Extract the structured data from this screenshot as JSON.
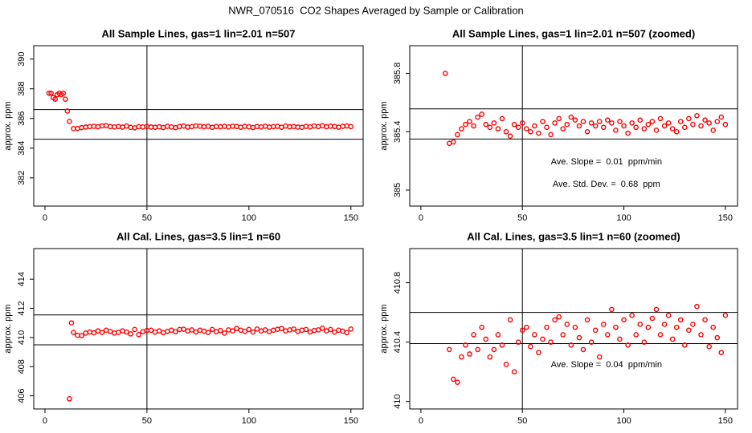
{
  "title": "NWR_070516  CO2 Shapes Averaged by Sample or Calibration",
  "chart_data": [
    {
      "type": "scatter",
      "title": "All Sample Lines, gas=1 lin=2.01 n=507",
      "y_label": "approx. ppm",
      "color": "#ff0000",
      "xlim": [
        -5.5,
        156
      ],
      "xticks": [
        0,
        50,
        100,
        150
      ],
      "ylim": [
        380.1,
        390.9
      ],
      "yticks": [
        382,
        384,
        386,
        388,
        390
      ],
      "hlines": [
        386.6,
        384.6
      ],
      "vlines": [
        50
      ],
      "annotations": [],
      "x": [
        2,
        3,
        4,
        5,
        6,
        7,
        8,
        9,
        10,
        11,
        12,
        14,
        16,
        18,
        20,
        22,
        24,
        26,
        28,
        30,
        32,
        34,
        36,
        38,
        40,
        42,
        44,
        46,
        48,
        50,
        52,
        54,
        56,
        58,
        60,
        62,
        64,
        66,
        68,
        70,
        72,
        74,
        76,
        78,
        80,
        82,
        84,
        86,
        88,
        90,
        92,
        94,
        96,
        98,
        100,
        102,
        104,
        106,
        108,
        110,
        112,
        114,
        116,
        118,
        120,
        122,
        124,
        126,
        128,
        130,
        132,
        134,
        136,
        138,
        140,
        142,
        144,
        146,
        148,
        150
      ],
      "values": [
        387.7,
        387.7,
        387.4,
        387.3,
        387.6,
        387.7,
        387.6,
        387.7,
        387.3,
        386.5,
        385.8,
        385.32,
        385.33,
        385.38,
        385.42,
        385.45,
        385.47,
        385.44,
        385.5,
        385.52,
        385.45,
        385.43,
        385.46,
        385.42,
        385.49,
        385.4,
        385.37,
        385.45,
        385.43,
        385.46,
        385.42,
        385.4,
        385.44,
        385.39,
        385.47,
        385.43,
        385.38,
        385.46,
        385.49,
        385.42,
        385.45,
        385.5,
        385.48,
        385.44,
        385.47,
        385.4,
        385.46,
        385.44,
        385.47,
        385.43,
        385.48,
        385.46,
        385.41,
        385.47,
        385.44,
        385.39,
        385.46,
        385.43,
        385.48,
        385.42,
        385.45,
        385.47,
        385.41,
        385.49,
        385.44,
        385.46,
        385.42,
        385.4,
        385.47,
        385.43,
        385.49,
        385.45,
        385.51,
        385.44,
        385.48,
        385.46,
        385.41,
        385.47,
        385.5,
        385.45
      ]
    },
    {
      "type": "scatter",
      "title": "All Sample Lines, gas=1 lin=2.01 n=507 (zoomed)",
      "y_label": "approx. ppm",
      "color": "#ff0000",
      "xlim": [
        -5.5,
        156
      ],
      "xticks": [
        0,
        50,
        100,
        150
      ],
      "ylim": [
        384.89,
        385.99
      ],
      "yticks": [
        385.0,
        385.4,
        385.8
      ],
      "hlines": [
        385.557,
        385.35
      ],
      "vlines": [
        50
      ],
      "annotations": [
        "Ave. Slope =  0.01  ppm/min",
        "Ave. Std. Dev. =  0.68  ppm"
      ],
      "x": [
        12,
        14,
        16,
        18,
        20,
        22,
        24,
        26,
        28,
        30,
        32,
        34,
        36,
        38,
        40,
        42,
        44,
        46,
        48,
        50,
        52,
        54,
        56,
        58,
        60,
        62,
        64,
        66,
        68,
        70,
        72,
        74,
        76,
        78,
        80,
        82,
        84,
        86,
        88,
        90,
        92,
        94,
        96,
        98,
        100,
        102,
        104,
        106,
        108,
        110,
        112,
        114,
        116,
        118,
        120,
        122,
        124,
        126,
        128,
        130,
        132,
        134,
        136,
        138,
        140,
        142,
        144,
        146,
        148,
        150
      ],
      "values": [
        385.8,
        385.32,
        385.33,
        385.38,
        385.42,
        385.45,
        385.47,
        385.44,
        385.5,
        385.52,
        385.45,
        385.43,
        385.46,
        385.42,
        385.49,
        385.4,
        385.37,
        385.45,
        385.43,
        385.46,
        385.42,
        385.4,
        385.44,
        385.39,
        385.47,
        385.43,
        385.38,
        385.46,
        385.49,
        385.42,
        385.45,
        385.5,
        385.48,
        385.44,
        385.47,
        385.4,
        385.46,
        385.44,
        385.47,
        385.43,
        385.48,
        385.46,
        385.41,
        385.47,
        385.44,
        385.39,
        385.46,
        385.43,
        385.48,
        385.42,
        385.45,
        385.47,
        385.41,
        385.49,
        385.44,
        385.46,
        385.42,
        385.4,
        385.47,
        385.43,
        385.49,
        385.45,
        385.51,
        385.44,
        385.48,
        385.46,
        385.41,
        385.47,
        385.5,
        385.45
      ]
    },
    {
      "type": "scatter",
      "title": "All Cal. Lines, gas=3.5 lin=1 n=60",
      "y_label": "approx. ppm",
      "color": "#ff0000",
      "xlim": [
        -5.5,
        156
      ],
      "xticks": [
        0,
        50,
        100,
        150
      ],
      "ylim": [
        405.1,
        416.1
      ],
      "yticks": [
        406,
        408,
        410,
        412,
        414
      ],
      "hlines": [
        411.55,
        409.5
      ],
      "vlines": [
        50
      ],
      "annotations": [],
      "x": [
        12,
        13,
        14,
        16,
        18,
        20,
        22,
        24,
        26,
        28,
        30,
        32,
        34,
        36,
        38,
        40,
        42,
        44,
        46,
        48,
        50,
        52,
        54,
        56,
        58,
        60,
        62,
        64,
        66,
        68,
        70,
        72,
        74,
        76,
        78,
        80,
        82,
        84,
        86,
        88,
        90,
        92,
        94,
        96,
        98,
        100,
        102,
        104,
        106,
        108,
        110,
        112,
        114,
        116,
        118,
        120,
        122,
        124,
        126,
        128,
        130,
        132,
        134,
        136,
        138,
        140,
        142,
        144,
        146,
        148,
        150
      ],
      "values": [
        405.8,
        411.0,
        410.35,
        410.15,
        410.13,
        410.3,
        410.38,
        410.32,
        410.45,
        410.35,
        410.5,
        410.42,
        410.3,
        410.35,
        410.45,
        410.38,
        410.25,
        410.55,
        410.2,
        410.4,
        410.48,
        410.5,
        410.37,
        410.45,
        410.33,
        410.42,
        410.5,
        410.4,
        410.55,
        410.57,
        410.45,
        410.52,
        410.38,
        410.5,
        410.43,
        410.35,
        410.55,
        410.4,
        410.48,
        410.3,
        410.52,
        410.45,
        410.62,
        410.5,
        410.42,
        410.55,
        410.38,
        410.58,
        410.45,
        410.52,
        410.4,
        410.5,
        410.56,
        410.62,
        410.45,
        410.52,
        410.58,
        410.42,
        410.5,
        410.55,
        410.38,
        410.48,
        410.52,
        410.64,
        410.45,
        410.55,
        410.37,
        410.5,
        410.43,
        410.33,
        410.58
      ]
    },
    {
      "type": "scatter",
      "title": "All Cal. Lines, gas=3.5 lin=1 n=60 (zoomed)",
      "y_label": "approx. ppm",
      "color": "#ff0000",
      "xlim": [
        -5.5,
        156
      ],
      "xticks": [
        0,
        50,
        100,
        150
      ],
      "ylim": [
        409.95,
        411.03
      ],
      "yticks": [
        410.0,
        410.4,
        410.8
      ],
      "hlines": [
        410.6,
        410.39
      ],
      "vlines": [
        50
      ],
      "annotations": [
        "Ave. Slope =  0.04  ppm/min"
      ],
      "x": [
        14,
        16,
        18,
        20,
        22,
        24,
        26,
        28,
        30,
        32,
        34,
        36,
        38,
        40,
        42,
        44,
        46,
        48,
        50,
        52,
        54,
        56,
        58,
        60,
        62,
        64,
        66,
        68,
        70,
        72,
        74,
        76,
        78,
        80,
        82,
        84,
        86,
        88,
        90,
        92,
        94,
        96,
        98,
        100,
        102,
        104,
        106,
        108,
        110,
        112,
        114,
        116,
        118,
        120,
        122,
        124,
        126,
        128,
        130,
        132,
        134,
        136,
        138,
        140,
        142,
        144,
        146,
        148,
        150
      ],
      "values": [
        410.35,
        410.15,
        410.13,
        410.3,
        410.38,
        410.32,
        410.45,
        410.35,
        410.5,
        410.42,
        410.3,
        410.35,
        410.45,
        410.38,
        410.25,
        410.55,
        410.2,
        410.4,
        410.48,
        410.5,
        410.37,
        410.45,
        410.33,
        410.42,
        410.5,
        410.4,
        410.55,
        410.57,
        410.45,
        410.52,
        410.38,
        410.5,
        410.43,
        410.35,
        410.55,
        410.4,
        410.48,
        410.3,
        410.52,
        410.45,
        410.62,
        410.5,
        410.42,
        410.55,
        410.38,
        410.58,
        410.45,
        410.52,
        410.4,
        410.5,
        410.56,
        410.62,
        410.45,
        410.52,
        410.58,
        410.42,
        410.5,
        410.55,
        410.38,
        410.48,
        410.52,
        410.64,
        410.45,
        410.55,
        410.37,
        410.5,
        410.43,
        410.33,
        410.58
      ]
    }
  ]
}
